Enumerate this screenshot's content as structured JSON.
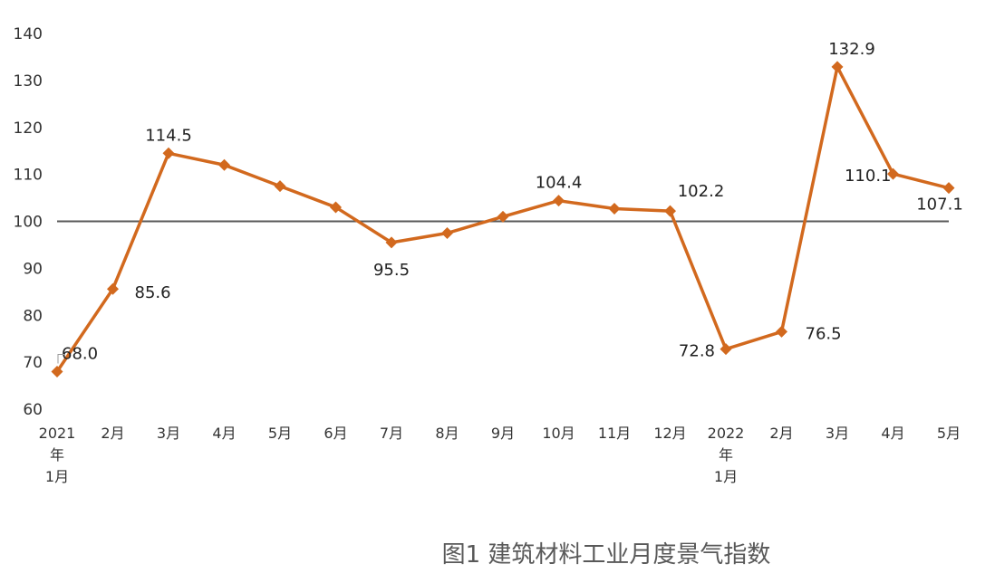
{
  "chart_data": {
    "type": "line",
    "title": "图1 建筑材料工业月度景气指数",
    "xlabel": "",
    "ylabel": "",
    "ylim": [
      60,
      140
    ],
    "yticks": [
      60,
      70,
      80,
      90,
      100,
      110,
      120,
      130,
      140
    ],
    "reference_line": 100,
    "grid": false,
    "legend": "none",
    "categories": [
      [
        "2021",
        "年",
        "1月"
      ],
      [
        "2月"
      ],
      [
        "3月"
      ],
      [
        "4月"
      ],
      [
        "5月"
      ],
      [
        "6月"
      ],
      [
        "7月"
      ],
      [
        "8月"
      ],
      [
        "9月"
      ],
      [
        "10月"
      ],
      [
        "11月"
      ],
      [
        "12月"
      ],
      [
        "2022",
        "年",
        "1月"
      ],
      [
        "2月"
      ],
      [
        "3月"
      ],
      [
        "4月"
      ],
      [
        "5月"
      ]
    ],
    "series": [
      {
        "values": [
          68.0,
          85.6,
          114.5,
          112.0,
          107.5,
          103.0,
          95.5,
          97.5,
          101.0,
          104.4,
          102.7,
          102.2,
          72.8,
          76.5,
          132.9,
          110.1,
          107.1
        ],
        "labels": [
          "68.0",
          "85.6",
          "114.5",
          "",
          "",
          "",
          "95.5",
          "",
          "",
          "104.4",
          "",
          "102.2",
          "72.8",
          "76.5",
          "132.9",
          "110.1",
          "107.1"
        ],
        "color": "#D2691E"
      }
    ],
    "reference_line_color": "#595959"
  }
}
